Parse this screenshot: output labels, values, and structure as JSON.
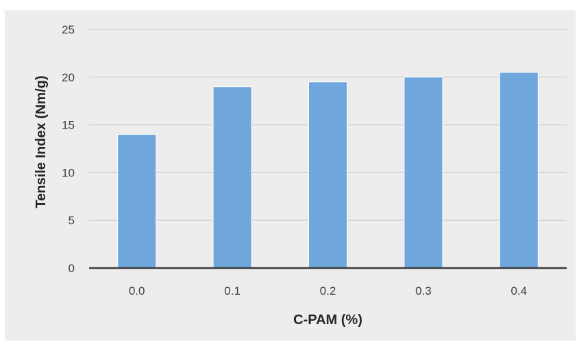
{
  "chart_data": {
    "type": "bar",
    "categories": [
      "0.0",
      "0.1",
      "0.2",
      "0.3",
      "0.4"
    ],
    "values": [
      14,
      19,
      19.5,
      20,
      20.5
    ],
    "xlabel": "C-PAM (%)",
    "ylabel": "Tensile Index (Nm/g)",
    "ylim": [
      0,
      25
    ],
    "yticks": [
      "0",
      "5",
      "10",
      "15",
      "20",
      "25"
    ],
    "grid": true,
    "legend": "none",
    "colors": {
      "bar": "#6fa6dc",
      "bar_border": "#ffffff",
      "plot_background": "#ededed",
      "gridline": "#cfcfcf",
      "x_axis_line": "#3a3a3a"
    }
  }
}
